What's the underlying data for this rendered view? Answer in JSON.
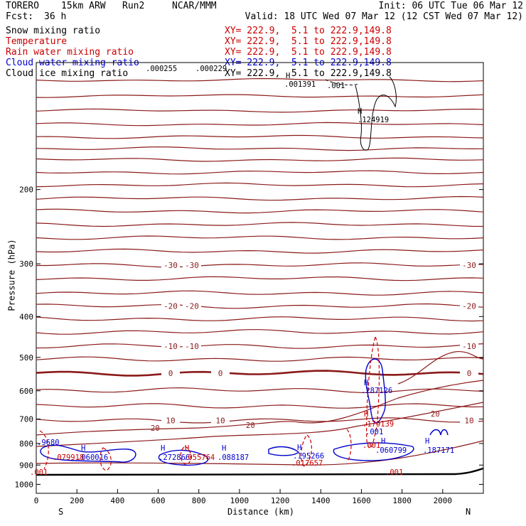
{
  "header": {
    "model": "TORERO",
    "config": "15km ARW",
    "run": "Run2",
    "org": "NCAR/MMM",
    "init": "Init: 06 UTC Tue 06 Mar 12",
    "fcst_label": "Fcst:",
    "fcst_value": "36 h",
    "valid": "Valid: 18 UTC Wed 07 Mar 12 (12 CST Wed 07 Mar 12)"
  },
  "legend": [
    {
      "name": "Snow mixing ratio",
      "xy": "XY= 222.9,  5.1 to 222.9,149.8",
      "color": "#000000"
    },
    {
      "name": "Temperature",
      "xy": "XY= 222.9,  5.1 to 222.9,149.8",
      "color": "#cc0000"
    },
    {
      "name": "Rain water mixing ratio",
      "xy": "XY= 222.9,  5.1 to 222.9,149.8",
      "color": "#cc0000"
    },
    {
      "name": "Cloud water mixing ratio",
      "xy": "XY= 222.9,  5.1 to 222.9,149.8",
      "color": "#0000cc"
    },
    {
      "name": "Cloud ice mixing ratio",
      "xy": "XY= 222.9,  5.1 to 222.9,149.8",
      "color": "#000000"
    }
  ],
  "chart_data": {
    "type": "line",
    "title": "",
    "xlabel": "Distance (km)",
    "ylabel": "Pressure (hPa)",
    "xlim": [
      0,
      2200
    ],
    "ylim": [
      1050,
      100
    ],
    "x_ticks": [
      0,
      200,
      400,
      600,
      800,
      1000,
      1200,
      1400,
      1600,
      1800,
      2000
    ],
    "y_ticks": [
      200,
      300,
      400,
      500,
      600,
      700,
      800,
      900,
      1000
    ],
    "y_scale": "log",
    "endpoints": {
      "left": "S",
      "right": "N"
    },
    "grid": false,
    "isotherms": [
      {
        "p": 110
      },
      {
        "p": 120
      },
      {
        "p": 130
      },
      {
        "p": 140
      },
      {
        "p": 150
      },
      {
        "p": 160
      },
      {
        "p": 170
      },
      {
        "p": 182
      },
      {
        "p": 195
      },
      {
        "p": 210
      },
      {
        "p": 225
      },
      {
        "p": 242
      },
      {
        "p": 260
      },
      {
        "p": 280
      },
      {
        "p": 302,
        "label": "-30"
      },
      {
        "p": 325
      },
      {
        "p": 352
      },
      {
        "p": 378,
        "label": "-20"
      },
      {
        "p": 405
      },
      {
        "p": 435
      },
      {
        "p": 470,
        "label": "-10"
      },
      {
        "p": 505
      },
      {
        "p": 545,
        "label": "0",
        "bold": true
      },
      {
        "p": 598
      },
      {
        "p": 652
      },
      {
        "p": 705,
        "label": "10"
      }
    ],
    "labels": {
      "snow_min": [
        ".000255",
        ".000229",
        ".001391",
        ".001"
      ],
      "snow_max": ".124919",
      "cloud_water": [
        ".9680",
        ".060016",
        ".272866",
        ".088187",
        ".195266",
        ".287126",
        ".060799",
        ".187171",
        ".001"
      ],
      "rain_water": [
        ".079918",
        ".055764",
        ".017657",
        ".179139",
        ".001",
        ".001",
        ".001"
      ],
      "temperature_low": [
        "20",
        "20",
        "20"
      ],
      "high_marker": "H"
    }
  }
}
